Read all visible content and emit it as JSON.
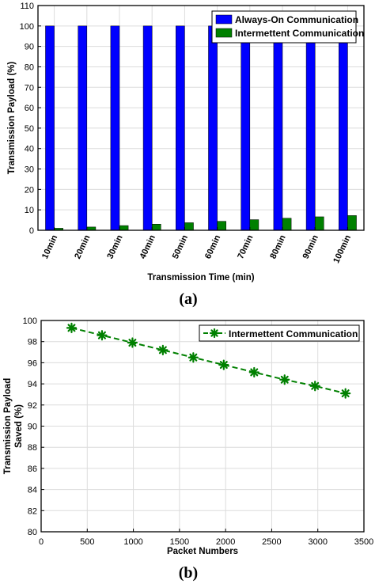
{
  "chart_data": [
    {
      "type": "bar",
      "panel_label": "(a)",
      "categories": [
        "10min",
        "20min",
        "30min",
        "40min",
        "50min",
        "60min",
        "70min",
        "80min",
        "90min",
        "100min"
      ],
      "series": [
        {
          "name": "Always-On Communication",
          "color": "#0000ff",
          "values": [
            100,
            100,
            100,
            100,
            100,
            100,
            100,
            100,
            100,
            100
          ]
        },
        {
          "name": "Intermettent Communication",
          "color": "#008000",
          "values": [
            1.0,
            1.6,
            2.3,
            3.0,
            3.7,
            4.4,
            5.2,
            5.9,
            6.6,
            7.2
          ]
        }
      ],
      "xlabel": "Transmission Time (min)",
      "ylabel": "Transmission  Payload  (%)",
      "ylim": [
        0,
        110
      ],
      "yticks": [
        0,
        10,
        20,
        30,
        40,
        50,
        60,
        70,
        80,
        90,
        100,
        110
      ],
      "legend": "top-right",
      "grid": true
    },
    {
      "type": "line",
      "panel_label": "(b)",
      "series": [
        {
          "name": "Intermettent Communication",
          "color": "#008000",
          "marker": "asterisk",
          "line_style": "dashed",
          "x": [
            330,
            660,
            990,
            1320,
            1650,
            1980,
            2310,
            2640,
            2970,
            3300
          ],
          "y": [
            99.3,
            98.6,
            97.9,
            97.2,
            96.5,
            95.8,
            95.1,
            94.4,
            93.8,
            93.1
          ]
        }
      ],
      "xlabel": "Packet Numbers",
      "ylabel_lines": [
        "Transmission  Payload",
        "Saved (%)"
      ],
      "xlim": [
        0,
        3500
      ],
      "ylim": [
        80,
        100
      ],
      "xticks": [
        0,
        500,
        1000,
        1500,
        2000,
        2500,
        3000,
        3500
      ],
      "yticks": [
        80,
        82,
        84,
        86,
        88,
        90,
        92,
        94,
        96,
        98,
        100
      ],
      "legend": "top-right",
      "grid": true
    }
  ]
}
